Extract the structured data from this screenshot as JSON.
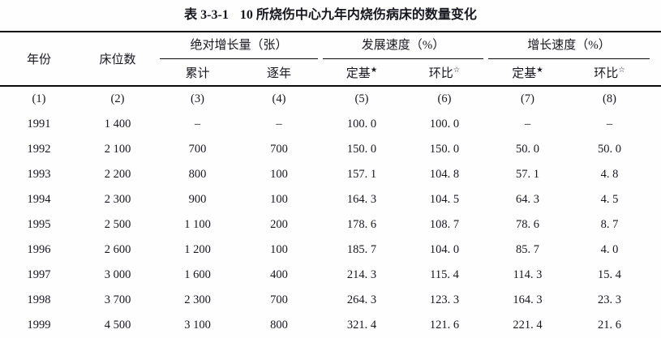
{
  "page": {
    "background": "#fefefe",
    "text_color": "#17171f",
    "rule_color": "#0a0a0a"
  },
  "title": {
    "label": "表 3-3-1",
    "text": "10 所烧伤中心九年内烧伤病床的数量变化"
  },
  "table": {
    "header": {
      "year": "年份",
      "beds": "床位数",
      "groups": [
        {
          "label": "绝对增长量（张）",
          "subs": [
            {
              "text": "累计",
              "star": ""
            },
            {
              "text": "逐年",
              "star": ""
            }
          ]
        },
        {
          "label": "发展速度（%）",
          "subs": [
            {
              "text": "定基",
              "star": "★"
            },
            {
              "text": "环比",
              "star": "☆"
            }
          ]
        },
        {
          "label": "增长速度（%）",
          "subs": [
            {
              "text": "定基",
              "star": "★"
            },
            {
              "text": "环比",
              "star": "☆"
            }
          ]
        }
      ]
    },
    "col_numbers": [
      "(1)",
      "(2)",
      "(3)",
      "(4)",
      "(5)",
      "(6)",
      "(7)",
      "(8)"
    ],
    "rows": [
      [
        "1991",
        "1 400",
        "–",
        "–",
        "100. 0",
        "100. 0",
        "–",
        "–"
      ],
      [
        "1992",
        "2 100",
        "700",
        "700",
        "150. 0",
        "150. 0",
        "50. 0",
        "50. 0"
      ],
      [
        "1993",
        "2 200",
        "800",
        "100",
        "157. 1",
        "104. 8",
        "57. 1",
        "4. 8"
      ],
      [
        "1994",
        "2 300",
        "900",
        "100",
        "164. 3",
        "104. 5",
        "64. 3",
        "4. 5"
      ],
      [
        "1995",
        "2 500",
        "1 100",
        "200",
        "178. 6",
        "108. 7",
        "78. 6",
        "8. 7"
      ],
      [
        "1996",
        "2 600",
        "1 200",
        "100",
        "185. 7",
        "104. 0",
        "85. 7",
        "4. 0"
      ],
      [
        "1997",
        "3 000",
        "1 600",
        "400",
        "214. 3",
        "115. 4",
        "114. 3",
        "15. 4"
      ],
      [
        "1998",
        "3 700",
        "2 300",
        "700",
        "264. 3",
        "123. 3",
        "164. 3",
        "23. 3"
      ],
      [
        "1999",
        "4 500",
        "3 100",
        "800",
        "321. 4",
        "121. 6",
        "221. 4",
        "21. 6"
      ]
    ]
  }
}
